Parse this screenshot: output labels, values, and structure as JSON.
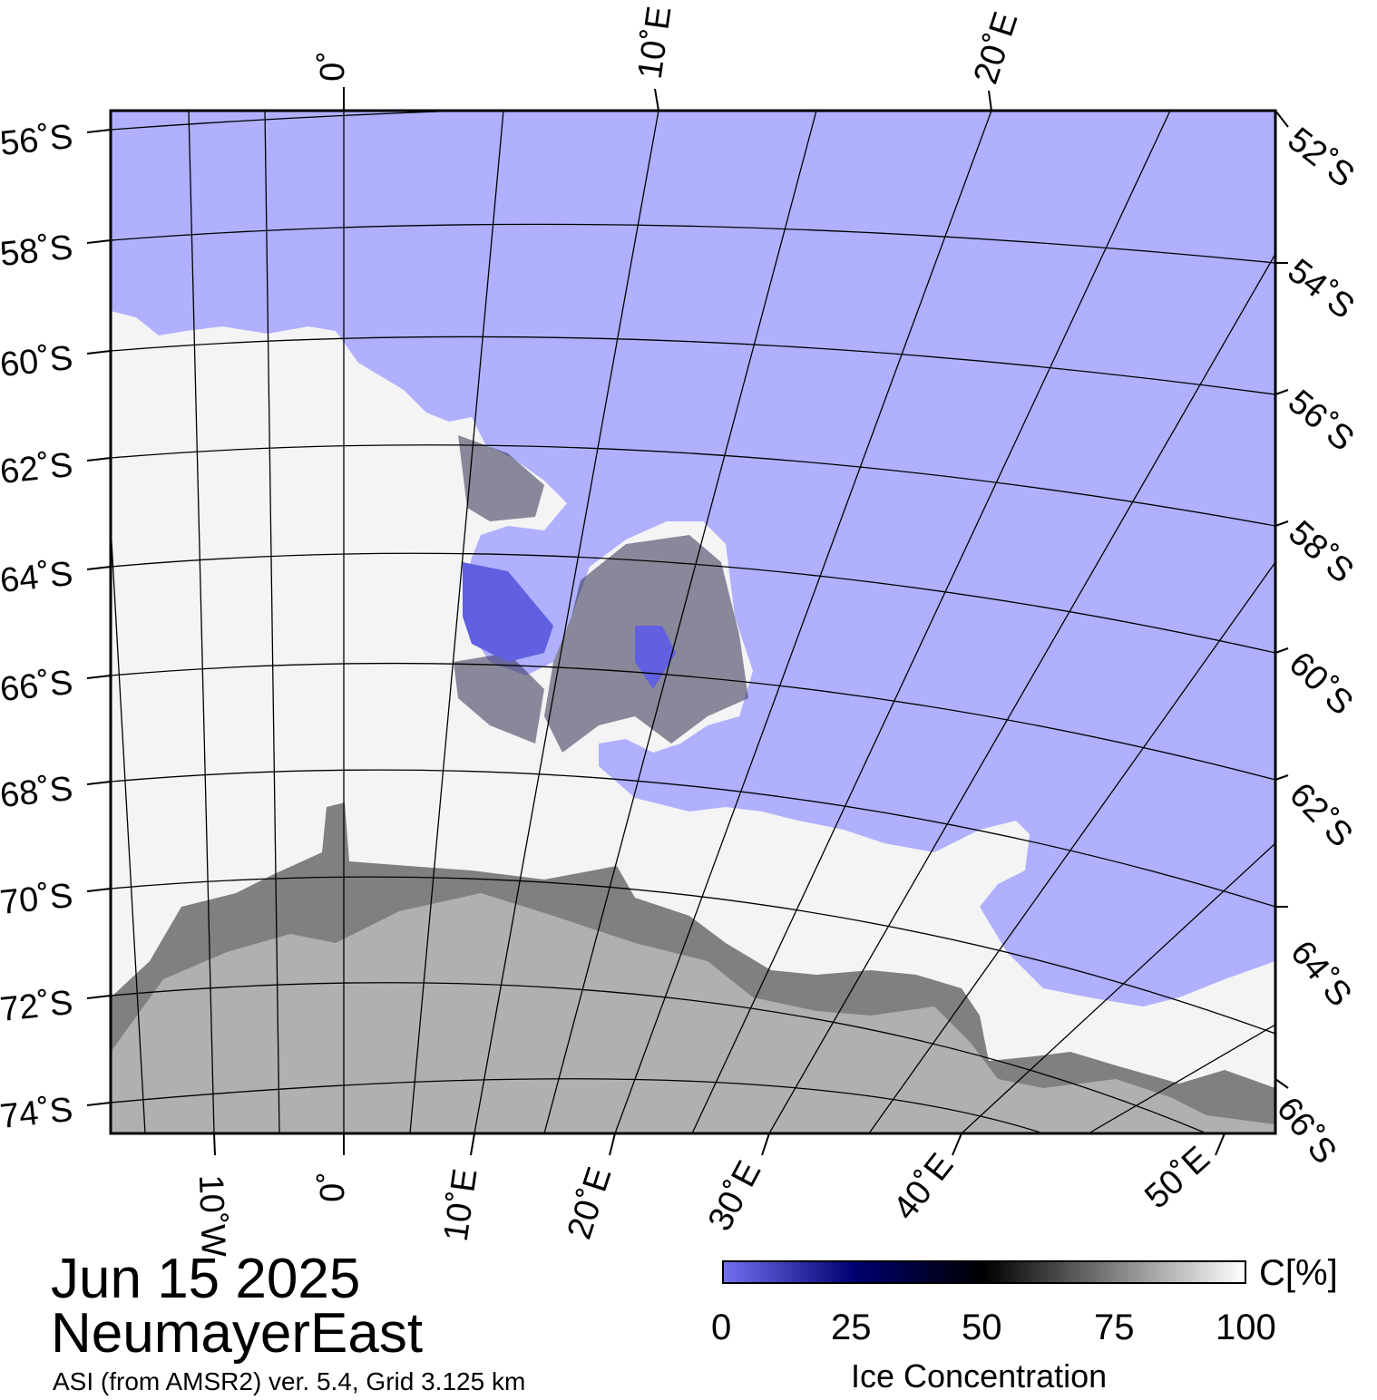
{
  "date": "Jun 15 2025",
  "region": "NeumayerEast",
  "source": "ASI (from AMSR2) ver. 5.4,  Grid 3.125 km",
  "colorbar": {
    "unit": "C[%]",
    "title": "Ice Concentration",
    "ticks": [
      "0",
      "25",
      "50",
      "75",
      "100"
    ],
    "stops": [
      "#7070f0",
      "#000070",
      "#000000",
      "#808080",
      "#ffffff"
    ]
  },
  "colors": {
    "open_water": "#b0b0ff",
    "sea_ice": "#f4f4f4",
    "ice_shelf": "#808080",
    "land": "#b0b0b0",
    "ice_edge": "#000060"
  },
  "graticule": {
    "left_lat_labels": [
      "56˚S",
      "58˚S",
      "60˚S",
      "62˚S",
      "64˚S",
      "66˚S",
      "68˚S",
      "70˚S",
      "72˚S",
      "74˚S"
    ],
    "right_lat_labels": [
      "52˚S",
      "54˚S",
      "56˚S",
      "58˚S",
      "60˚S",
      "62˚S",
      "64˚S",
      "66˚S"
    ],
    "top_lon_labels": [
      "0˚",
      "10˚E",
      "20˚E"
    ],
    "bottom_lon_labels": [
      "10˚W",
      "0˚",
      "10˚E",
      "20˚E",
      "30˚E",
      "40˚E",
      "50˚E"
    ]
  }
}
